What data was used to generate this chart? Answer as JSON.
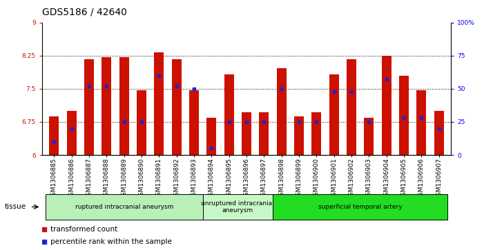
{
  "title": "GDS5186 / 42640",
  "samples": [
    "GSM1306885",
    "GSM1306886",
    "GSM1306887",
    "GSM1306888",
    "GSM1306889",
    "GSM1306890",
    "GSM1306891",
    "GSM1306892",
    "GSM1306893",
    "GSM1306894",
    "GSM1306895",
    "GSM1306896",
    "GSM1306897",
    "GSM1306898",
    "GSM1306899",
    "GSM1306900",
    "GSM1306901",
    "GSM1306902",
    "GSM1306903",
    "GSM1306904",
    "GSM1306905",
    "GSM1306906",
    "GSM1306907"
  ],
  "transformed_count": [
    6.87,
    7.0,
    8.17,
    8.22,
    8.22,
    7.47,
    8.32,
    8.17,
    7.47,
    6.85,
    7.83,
    6.97,
    6.97,
    7.97,
    6.87,
    6.97,
    7.83,
    8.17,
    6.85,
    8.25,
    7.8,
    7.47,
    7.0
  ],
  "percentile_rank_pct": [
    10,
    20,
    52,
    52,
    25,
    25,
    60,
    52,
    50,
    5,
    25,
    25,
    25,
    50,
    25,
    25,
    48,
    48,
    25,
    57,
    28,
    28,
    20
  ],
  "ylim_left": [
    6,
    9
  ],
  "ylim_right": [
    0,
    100
  ],
  "yticks_left": [
    6,
    6.75,
    7.5,
    8.25,
    9
  ],
  "yticks_right": [
    0,
    25,
    50,
    75,
    100
  ],
  "ytick_labels_left": [
    "6",
    "6.75",
    "7.5",
    "8.25",
    "9"
  ],
  "ytick_labels_right": [
    "0",
    "25",
    "50",
    "75",
    "100%"
  ],
  "hlines": [
    6.75,
    7.5,
    8.25
  ],
  "groups": [
    {
      "label": "ruptured intracranial aneurysm",
      "start": 0,
      "end": 9,
      "color": "#b8f0b8"
    },
    {
      "label": "unruptured intracranial\naneurysm",
      "start": 9,
      "end": 13,
      "color": "#c8f8c8"
    },
    {
      "label": "superficial temporal artery",
      "start": 13,
      "end": 23,
      "color": "#22dd22"
    }
  ],
  "bar_color": "#cc1100",
  "dot_color": "#2222cc",
  "bar_width": 0.55,
  "background_plot": "#ffffff",
  "title_fontsize": 10,
  "tick_fontsize": 6.5
}
